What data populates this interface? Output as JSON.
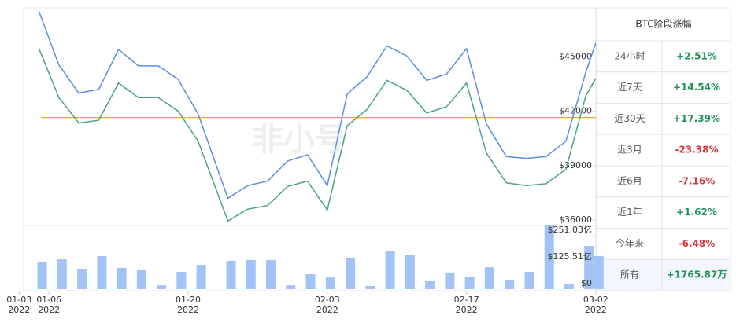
{
  "chart_data": {
    "type": "line",
    "watermark": "非小号",
    "x": [
      "2022-01-05",
      "2022-01-07",
      "2022-01-09",
      "2022-01-11",
      "2022-01-13",
      "2022-01-15",
      "2022-01-17",
      "2022-01-19",
      "2022-01-21",
      "2022-01-24",
      "2022-01-26",
      "2022-01-28",
      "2022-01-30",
      "2022-02-01",
      "2022-02-03",
      "2022-02-05",
      "2022-02-07",
      "2022-02-09",
      "2022-02-11",
      "2022-02-13",
      "2022-02-15",
      "2022-02-17",
      "2022-02-19",
      "2022-02-21",
      "2022-02-23",
      "2022-02-25",
      "2022-02-27",
      "2022-03-01",
      "2022-03-02"
    ],
    "xticks": [
      {
        "value": "2022-01-03",
        "label": "01-03 2022"
      },
      {
        "value": "2022-01-06",
        "label": "01-06 2022"
      },
      {
        "value": "2022-01-20",
        "label": "01-20 2022"
      },
      {
        "value": "2022-02-03",
        "label": "02-03 2022"
      },
      {
        "value": "2022-02-17",
        "label": "02-17 2022"
      },
      {
        "value": "2022-03-02",
        "label": "03-02 2022"
      }
    ],
    "series": [
      {
        "color": "#5b8ee6",
        "values": [
          47500,
          44550,
          43000,
          43200,
          45400,
          44500,
          44500,
          43750,
          41850,
          37200,
          37900,
          38150,
          39250,
          39600,
          37900,
          42950,
          43900,
          45600,
          45050,
          43700,
          44050,
          45450,
          41300,
          39500,
          39400,
          39500,
          40350,
          44150,
          45750
        ]
      },
      {
        "color": "#4ba382",
        "values": [
          45450,
          42750,
          41350,
          41500,
          43550,
          42750,
          42750,
          42000,
          40350,
          35950,
          36600,
          36800,
          37850,
          38150,
          36550,
          41200,
          42100,
          43700,
          43150,
          41900,
          42250,
          43550,
          39700,
          38050,
          37900,
          38000,
          38800,
          42850,
          43800
        ]
      }
    ],
    "ylim": [
      35700,
      47700
    ],
    "yticks": [
      {
        "value": 36000,
        "label": "$36000"
      },
      {
        "value": 39000,
        "label": "$39000"
      },
      {
        "value": 42000,
        "label": "$42000"
      },
      {
        "value": 45000,
        "label": "$45000"
      }
    ],
    "reference_line": {
      "value": 41650,
      "color": "#f0a23c"
    },
    "volume": {
      "color": "#a3c2f5",
      "values": [
        125.5,
        140,
        96,
        155,
        100,
        89,
        18,
        81,
        114,
        133,
        137,
        137,
        18,
        70,
        55,
        148,
        15,
        177,
        159,
        37,
        78,
        59,
        103,
        44,
        81,
        299,
        22,
        203,
        155
      ],
      "ylim": [
        0,
        299
      ],
      "yticks": [
        {
          "value": 0,
          "label": "$0"
        },
        {
          "value": 125.51,
          "label": "$125.51亿"
        },
        {
          "value": 251.03,
          "label": "$251.03亿"
        }
      ]
    }
  },
  "stage_table": {
    "title": "BTC阶段涨幅",
    "rows": [
      [
        "24小时",
        "+2.51%"
      ],
      [
        "近7天",
        "+14.54%"
      ],
      [
        "近30天",
        "+17.39%"
      ],
      [
        "近3月",
        "-23.38%"
      ],
      [
        "近6月",
        "-7.16%"
      ],
      [
        "近1年",
        "+1.62%"
      ],
      [
        "今年来",
        "-6.48%"
      ],
      [
        "所有",
        "+1765.87万"
      ]
    ]
  }
}
